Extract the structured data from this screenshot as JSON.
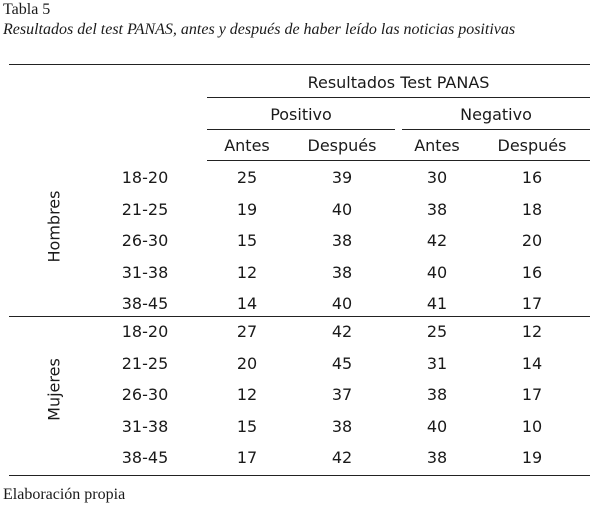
{
  "title": "Tabla 5",
  "caption": "Resultados del test PANAS, antes y después de haber leído las noticias positivas",
  "footer": "Elaboración propia",
  "header": {
    "main": "Resultados Test PANAS",
    "positivo": "Positivo",
    "negativo": "Negativo",
    "sub": [
      "Antes",
      "Después",
      "Antes",
      "Después"
    ]
  },
  "groups": [
    {
      "name": "Hombres",
      "rows": [
        {
          "age": "18-20",
          "values": [
            "25",
            "39",
            "30",
            "16"
          ]
        },
        {
          "age": "21-25",
          "values": [
            "19",
            "40",
            "38",
            "18"
          ]
        },
        {
          "age": "26-30",
          "values": [
            "15",
            "38",
            "42",
            "20"
          ]
        },
        {
          "age": "31-38",
          "values": [
            "12",
            "38",
            "40",
            "16"
          ]
        },
        {
          "age": "38-45",
          "values": [
            "14",
            "40",
            "41",
            "17"
          ]
        }
      ]
    },
    {
      "name": "Mujeres",
      "rows": [
        {
          "age": "18-20",
          "values": [
            "27",
            "42",
            "25",
            "12"
          ]
        },
        {
          "age": "21-25",
          "values": [
            "20",
            "45",
            "31",
            "14"
          ]
        },
        {
          "age": "26-30",
          "values": [
            "12",
            "37",
            "38",
            "17"
          ]
        },
        {
          "age": "31-38",
          "values": [
            "15",
            "38",
            "40",
            "10"
          ]
        },
        {
          "age": "38-45",
          "values": [
            "17",
            "42",
            "38",
            "19"
          ]
        }
      ]
    }
  ]
}
